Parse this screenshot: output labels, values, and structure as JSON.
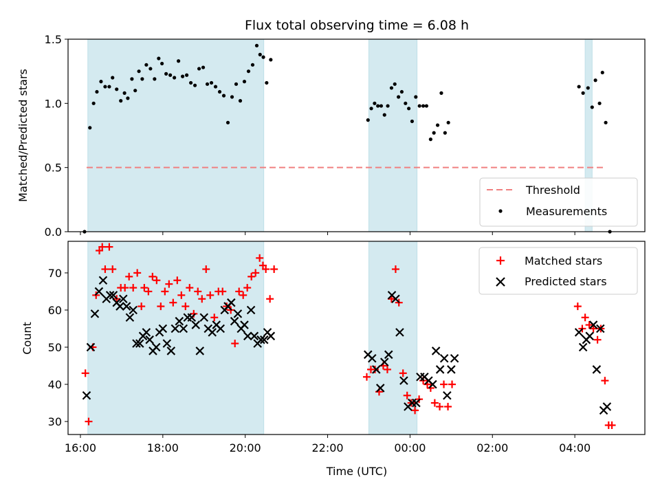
{
  "chart_data": [
    {
      "type": "scatter",
      "title": "Flux total observing time = 6.08 h",
      "xlabel": "",
      "ylabel": "Matched/Predicted stars",
      "ylim": [
        0,
        1.5
      ],
      "yticks": [
        "0.0",
        "0.5",
        "1.0",
        "1.5"
      ],
      "x_unit": "hours since 00:00 of first day (UTC)",
      "xlim": [
        15.7,
        29.7
      ],
      "shaded_intervals": [
        [
          16.18,
          20.45
        ],
        [
          23.0,
          24.17
        ],
        [
          28.25,
          28.42
        ]
      ],
      "shade_color": "#d4eaf0",
      "threshold": {
        "name": "Threshold",
        "value": 0.5,
        "x_range": [
          16.15,
          28.75
        ],
        "color": "#f08080",
        "style": "dashed"
      },
      "legend": {
        "position": "lower-right",
        "entries": [
          "Threshold",
          "Measurements"
        ]
      },
      "series": [
        {
          "name": "Measurements",
          "color": "#000000",
          "points": [
            [
              16.1,
              0.0
            ],
            [
              16.23,
              0.81
            ],
            [
              16.32,
              1.0
            ],
            [
              16.4,
              1.09
            ],
            [
              16.5,
              1.17
            ],
            [
              16.6,
              1.13
            ],
            [
              16.7,
              1.13
            ],
            [
              16.78,
              1.2
            ],
            [
              16.88,
              1.11
            ],
            [
              16.98,
              1.02
            ],
            [
              17.07,
              1.08
            ],
            [
              17.15,
              1.04
            ],
            [
              17.25,
              1.19
            ],
            [
              17.33,
              1.1
            ],
            [
              17.42,
              1.25
            ],
            [
              17.5,
              1.19
            ],
            [
              17.6,
              1.3
            ],
            [
              17.7,
              1.27
            ],
            [
              17.8,
              1.19
            ],
            [
              17.9,
              1.35
            ],
            [
              17.98,
              1.31
            ],
            [
              18.08,
              1.23
            ],
            [
              18.18,
              1.22
            ],
            [
              18.28,
              1.2
            ],
            [
              18.38,
              1.33
            ],
            [
              18.48,
              1.21
            ],
            [
              18.58,
              1.22
            ],
            [
              18.68,
              1.16
            ],
            [
              18.78,
              1.14
            ],
            [
              18.88,
              1.27
            ],
            [
              18.98,
              1.28
            ],
            [
              19.08,
              1.15
            ],
            [
              19.18,
              1.16
            ],
            [
              19.28,
              1.13
            ],
            [
              19.38,
              1.09
            ],
            [
              19.48,
              1.06
            ],
            [
              19.58,
              0.85
            ],
            [
              19.68,
              1.05
            ],
            [
              19.78,
              1.15
            ],
            [
              19.88,
              1.02
            ],
            [
              19.98,
              1.17
            ],
            [
              20.08,
              1.25
            ],
            [
              20.18,
              1.3
            ],
            [
              20.28,
              1.45
            ],
            [
              20.36,
              1.38
            ],
            [
              20.44,
              1.36
            ],
            [
              20.52,
              1.16
            ],
            [
              20.62,
              1.34
            ],
            [
              22.98,
              0.87
            ],
            [
              23.06,
              0.96
            ],
            [
              23.14,
              1.0
            ],
            [
              23.22,
              0.98
            ],
            [
              23.3,
              0.98
            ],
            [
              23.38,
              0.91
            ],
            [
              23.46,
              0.98
            ],
            [
              23.55,
              1.12
            ],
            [
              23.63,
              1.15
            ],
            [
              23.72,
              1.05
            ],
            [
              23.8,
              1.09
            ],
            [
              23.89,
              1.0
            ],
            [
              23.97,
              0.96
            ],
            [
              24.05,
              0.86
            ],
            [
              24.14,
              1.05
            ],
            [
              24.23,
              0.98
            ],
            [
              24.32,
              0.98
            ],
            [
              24.4,
              0.98
            ],
            [
              24.5,
              0.72
            ],
            [
              24.58,
              0.77
            ],
            [
              24.67,
              0.83
            ],
            [
              24.76,
              1.08
            ],
            [
              24.85,
              0.77
            ],
            [
              24.93,
              0.85
            ],
            [
              28.1,
              1.13
            ],
            [
              28.2,
              1.08
            ],
            [
              28.32,
              1.12
            ],
            [
              28.42,
              0.97
            ],
            [
              28.5,
              1.18
            ],
            [
              28.6,
              1.0
            ],
            [
              28.67,
              1.24
            ],
            [
              28.75,
              0.85
            ],
            [
              28.85,
              0.0
            ]
          ]
        }
      ]
    },
    {
      "type": "scatter",
      "title": "",
      "xlabel": "Time (UTC)",
      "ylabel": "Count",
      "ylim": [
        26.5,
        78.5
      ],
      "yticks": [
        "30",
        "40",
        "50",
        "60",
        "70"
      ],
      "x_unit": "hours since 00:00 of first day (UTC)",
      "xlim": [
        15.7,
        29.7
      ],
      "xticks": [
        {
          "value": 16,
          "label": "16:00"
        },
        {
          "value": 18,
          "label": "18:00"
        },
        {
          "value": 20,
          "label": "20:00"
        },
        {
          "value": 22,
          "label": "22:00"
        },
        {
          "value": 24,
          "label": "00:00"
        },
        {
          "value": 26,
          "label": "02:00"
        },
        {
          "value": 28,
          "label": "04:00"
        }
      ],
      "shaded_intervals": [
        [
          16.18,
          20.45
        ],
        [
          23.0,
          24.17
        ]
      ],
      "shade_color": "#d4eaf0",
      "legend": {
        "position": "upper-right",
        "entries": [
          "Matched stars",
          "Predicted stars"
        ]
      },
      "series": [
        {
          "name": "Matched stars",
          "marker": "plus",
          "color": "#ff0000",
          "points": [
            [
              16.12,
              43
            ],
            [
              16.2,
              30
            ],
            [
              16.3,
              50
            ],
            [
              16.38,
              64
            ],
            [
              16.46,
              76
            ],
            [
              16.53,
              77
            ],
            [
              16.6,
              71
            ],
            [
              16.7,
              77
            ],
            [
              16.78,
              71
            ],
            [
              16.88,
              63
            ],
            [
              16.98,
              66
            ],
            [
              17.08,
              66
            ],
            [
              17.18,
              69
            ],
            [
              17.28,
              66
            ],
            [
              17.38,
              70
            ],
            [
              17.48,
              61
            ],
            [
              17.55,
              66
            ],
            [
              17.65,
              65
            ],
            [
              17.75,
              69
            ],
            [
              17.85,
              68
            ],
            [
              17.95,
              61
            ],
            [
              18.05,
              65
            ],
            [
              18.15,
              67
            ],
            [
              18.25,
              62
            ],
            [
              18.35,
              68
            ],
            [
              18.45,
              64
            ],
            [
              18.55,
              61
            ],
            [
              18.65,
              66
            ],
            [
              18.75,
              59
            ],
            [
              18.85,
              65
            ],
            [
              18.95,
              63
            ],
            [
              19.05,
              71
            ],
            [
              19.15,
              64
            ],
            [
              19.25,
              58
            ],
            [
              19.35,
              65
            ],
            [
              19.45,
              65
            ],
            [
              19.55,
              61
            ],
            [
              19.65,
              60
            ],
            [
              19.75,
              51
            ],
            [
              19.85,
              65
            ],
            [
              19.95,
              64
            ],
            [
              20.05,
              66
            ],
            [
              20.15,
              69
            ],
            [
              20.25,
              70
            ],
            [
              20.35,
              74
            ],
            [
              20.43,
              72
            ],
            [
              20.5,
              71
            ],
            [
              20.6,
              63
            ],
            [
              20.7,
              71
            ],
            [
              22.95,
              42
            ],
            [
              23.05,
              44
            ],
            [
              23.15,
              44
            ],
            [
              23.25,
              38
            ],
            [
              23.35,
              45
            ],
            [
              23.45,
              44
            ],
            [
              23.55,
              63
            ],
            [
              23.65,
              71
            ],
            [
              23.73,
              62
            ],
            [
              23.83,
              43
            ],
            [
              23.93,
              37
            ],
            [
              24.03,
              35
            ],
            [
              24.12,
              33
            ],
            [
              24.22,
              36
            ],
            [
              24.32,
              41
            ],
            [
              24.42,
              40
            ],
            [
              24.5,
              39
            ],
            [
              24.6,
              35
            ],
            [
              24.72,
              34
            ],
            [
              24.82,
              40
            ],
            [
              24.92,
              34
            ],
            [
              25.02,
              40
            ],
            [
              28.07,
              61
            ],
            [
              28.18,
              55
            ],
            [
              28.25,
              58
            ],
            [
              28.35,
              56
            ],
            [
              28.45,
              55
            ],
            [
              28.55,
              52
            ],
            [
              28.63,
              55
            ],
            [
              28.73,
              41
            ],
            [
              28.82,
              29
            ],
            [
              28.9,
              29
            ]
          ]
        },
        {
          "name": "Predicted stars",
          "marker": "x",
          "color": "#000000",
          "points": [
            [
              16.15,
              37
            ],
            [
              16.25,
              50
            ],
            [
              16.35,
              59
            ],
            [
              16.45,
              65
            ],
            [
              16.55,
              68
            ],
            [
              16.63,
              63
            ],
            [
              16.72,
              64
            ],
            [
              16.8,
              64
            ],
            [
              16.88,
              62
            ],
            [
              16.96,
              61
            ],
            [
              17.04,
              63
            ],
            [
              17.12,
              61
            ],
            [
              17.2,
              58
            ],
            [
              17.28,
              60
            ],
            [
              17.36,
              51
            ],
            [
              17.44,
              51
            ],
            [
              17.52,
              53
            ],
            [
              17.6,
              54
            ],
            [
              17.68,
              52
            ],
            [
              17.76,
              49
            ],
            [
              17.84,
              50
            ],
            [
              17.92,
              54
            ],
            [
              18.0,
              55
            ],
            [
              18.1,
              51
            ],
            [
              18.2,
              49
            ],
            [
              18.3,
              55
            ],
            [
              18.4,
              57
            ],
            [
              18.5,
              55
            ],
            [
              18.6,
              58
            ],
            [
              18.7,
              58
            ],
            [
              18.8,
              56
            ],
            [
              18.9,
              49
            ],
            [
              19.0,
              58
            ],
            [
              19.1,
              55
            ],
            [
              19.2,
              54
            ],
            [
              19.3,
              56
            ],
            [
              19.4,
              55
            ],
            [
              19.5,
              60
            ],
            [
              19.58,
              61
            ],
            [
              19.66,
              62
            ],
            [
              19.74,
              57
            ],
            [
              19.82,
              59
            ],
            [
              19.9,
              55
            ],
            [
              19.98,
              56
            ],
            [
              20.06,
              53
            ],
            [
              20.14,
              60
            ],
            [
              20.22,
              53
            ],
            [
              20.3,
              51
            ],
            [
              20.38,
              52
            ],
            [
              20.46,
              52
            ],
            [
              20.54,
              54
            ],
            [
              20.62,
              53
            ],
            [
              22.98,
              48
            ],
            [
              23.08,
              47
            ],
            [
              23.18,
              44
            ],
            [
              23.28,
              39
            ],
            [
              23.38,
              46
            ],
            [
              23.48,
              48
            ],
            [
              23.56,
              64
            ],
            [
              23.65,
              63
            ],
            [
              23.75,
              54
            ],
            [
              23.85,
              41
            ],
            [
              23.95,
              34
            ],
            [
              24.05,
              35
            ],
            [
              24.15,
              35
            ],
            [
              24.25,
              42
            ],
            [
              24.35,
              42
            ],
            [
              24.45,
              41
            ],
            [
              24.55,
              40
            ],
            [
              24.63,
              49
            ],
            [
              24.73,
              44
            ],
            [
              24.83,
              47
            ],
            [
              24.9,
              37
            ],
            [
              25.0,
              44
            ],
            [
              25.08,
              47
            ],
            [
              28.1,
              54
            ],
            [
              28.2,
              50
            ],
            [
              28.28,
              52
            ],
            [
              28.36,
              53
            ],
            [
              28.45,
              56
            ],
            [
              28.53,
              44
            ],
            [
              28.62,
              55
            ],
            [
              28.7,
              33
            ],
            [
              28.78,
              34
            ]
          ]
        }
      ]
    }
  ],
  "legend": {
    "threshold_label": "Threshold",
    "measurements_label": "Measurements",
    "matched_label": "Matched stars",
    "predicted_label": "Predicted stars"
  }
}
